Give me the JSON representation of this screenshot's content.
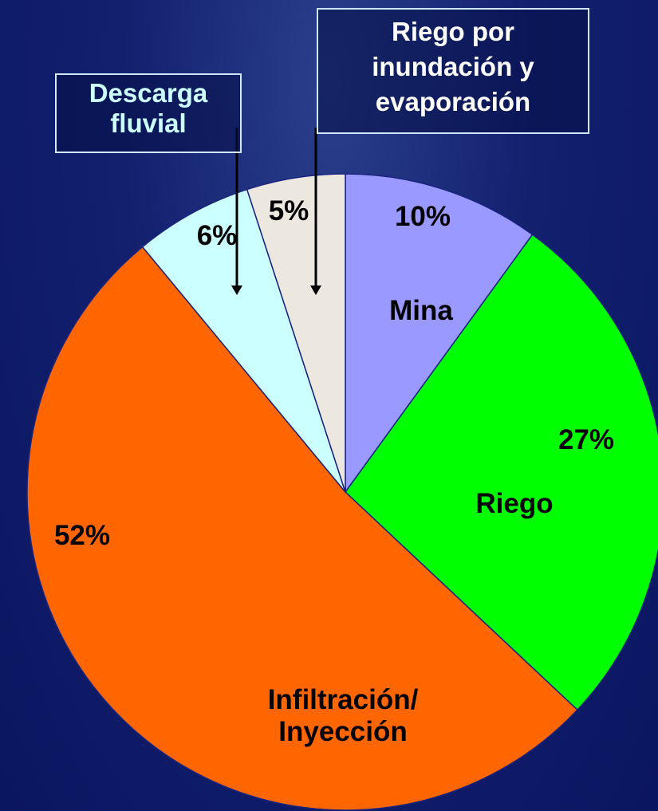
{
  "chart_data": {
    "type": "pie",
    "categories": [
      "Mina",
      "Riego",
      "Infiltración/ Inyección",
      "Descarga fluvial",
      "Riego por inundación y evaporación"
    ],
    "values": [
      10,
      27,
      52,
      6,
      5
    ],
    "value_labels": [
      "10%",
      "27%",
      "52%",
      "6%",
      "5%"
    ],
    "colors": [
      "#9999ff",
      "#00ff00",
      "#ff6600",
      "#ccffff",
      "#ece8df"
    ]
  }
}
